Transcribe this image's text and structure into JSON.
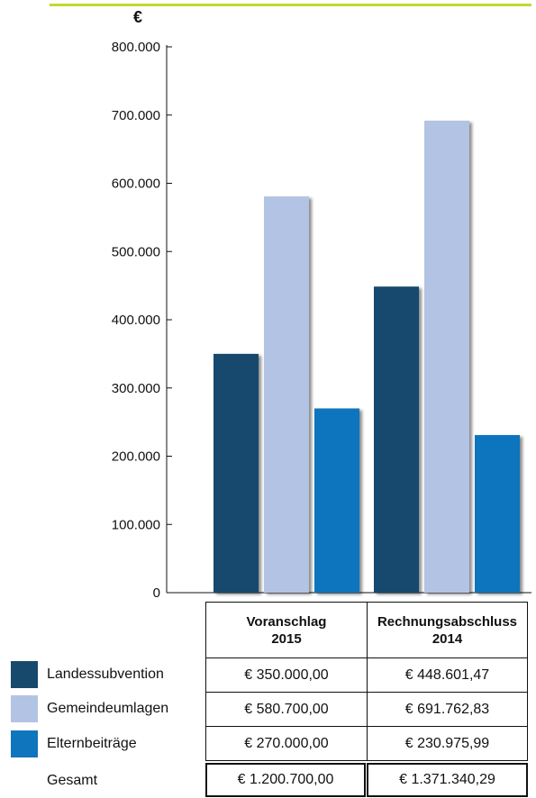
{
  "chart_data": {
    "type": "bar",
    "unit": "€",
    "categories": [
      "Voranschlag 2015",
      "Rechnungsabschluss 2014"
    ],
    "series": [
      {
        "name": "Landessubvention",
        "color": "#17496d",
        "values": [
          350000,
          448601.47
        ]
      },
      {
        "name": "Gemeindeumlagen",
        "color": "#b3c3e3",
        "values": [
          580700,
          691762.83
        ]
      },
      {
        "name": "Elternbeiträge",
        "color": "#0f75bd",
        "values": [
          270000,
          230975.99
        ]
      }
    ],
    "ylim": [
      0,
      800000
    ],
    "yticks": [
      "0",
      "100.000",
      "200.000",
      "300.000",
      "400.000",
      "500.000",
      "600.000",
      "700.000",
      "800.000"
    ],
    "grid": false,
    "legend": "bottom-left"
  },
  "table": {
    "columns": [
      {
        "line1": "Voranschlag",
        "line2": "2015"
      },
      {
        "line1": "Rechnungsabschluss",
        "line2": "2014"
      }
    ],
    "rows": [
      {
        "label": "Landessubvention",
        "values": [
          "€ 350.000,00",
          "€ 448.601,47"
        ]
      },
      {
        "label": "Gemeindeumlagen",
        "values": [
          "€ 580.700,00",
          "€ 691.762,83"
        ]
      },
      {
        "label": "Elternbeiträge",
        "values": [
          "€ 270.000,00",
          "€ 230.975,99"
        ]
      },
      {
        "label": "Gesamt",
        "values": [
          "€ 1.200.700,00",
          "€ 1.371.340,29"
        ]
      }
    ]
  }
}
